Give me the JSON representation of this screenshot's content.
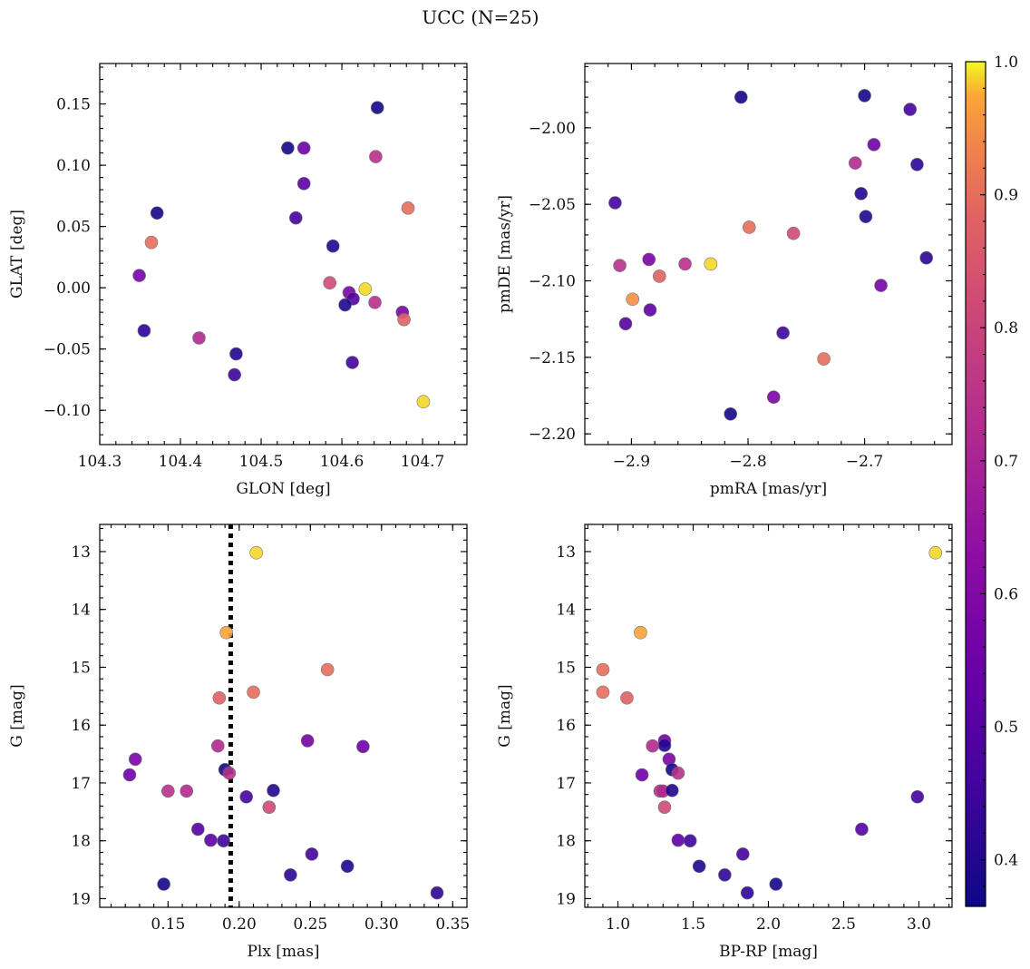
{
  "title": "UCC (N=25)",
  "colorbar": {
    "colormap": "plasma",
    "range": [
      0.365,
      1.0
    ],
    "ticks": [
      "0.4",
      "0.5",
      "0.6",
      "0.7",
      "0.8",
      "0.9",
      "1.0"
    ]
  },
  "chart_data": [
    {
      "type": "scatter",
      "xlabel": "GLON [deg]",
      "ylabel": "GLAT [deg]",
      "xlim": [
        104.3,
        104.755
      ],
      "ylim": [
        -0.128,
        0.183
      ],
      "xticks": [
        "104.3",
        "104.4",
        "104.5",
        "104.6",
        "104.7"
      ],
      "yticks": [
        "-0.10",
        "-0.05",
        "0.00",
        "0.05",
        "0.10",
        "0.15"
      ],
      "points": [
        {
          "x": 104.644,
          "y": 0.147,
          "c": 0.38
        },
        {
          "x": 104.533,
          "y": 0.114,
          "c": 0.38
        },
        {
          "x": 104.553,
          "y": 0.114,
          "c": 0.55
        },
        {
          "x": 104.642,
          "y": 0.107,
          "c": 0.74
        },
        {
          "x": 104.553,
          "y": 0.085,
          "c": 0.52
        },
        {
          "x": 104.682,
          "y": 0.065,
          "c": 0.9
        },
        {
          "x": 104.371,
          "y": 0.061,
          "c": 0.38
        },
        {
          "x": 104.543,
          "y": 0.057,
          "c": 0.46
        },
        {
          "x": 104.364,
          "y": 0.037,
          "c": 0.9
        },
        {
          "x": 104.589,
          "y": 0.034,
          "c": 0.4
        },
        {
          "x": 104.349,
          "y": 0.01,
          "c": 0.57
        },
        {
          "x": 104.585,
          "y": 0.004,
          "c": 0.82
        },
        {
          "x": 104.629,
          "y": -0.001,
          "c": 0.99
        },
        {
          "x": 104.609,
          "y": -0.004,
          "c": 0.58
        },
        {
          "x": 104.614,
          "y": -0.009,
          "c": 0.5
        },
        {
          "x": 104.641,
          "y": -0.012,
          "c": 0.74
        },
        {
          "x": 104.604,
          "y": -0.014,
          "c": 0.4
        },
        {
          "x": 104.675,
          "y": -0.02,
          "c": 0.58
        },
        {
          "x": 104.677,
          "y": -0.026,
          "c": 0.88
        },
        {
          "x": 104.355,
          "y": -0.035,
          "c": 0.42
        },
        {
          "x": 104.423,
          "y": -0.041,
          "c": 0.72
        },
        {
          "x": 104.469,
          "y": -0.054,
          "c": 0.4
        },
        {
          "x": 104.613,
          "y": -0.061,
          "c": 0.46
        },
        {
          "x": 104.467,
          "y": -0.071,
          "c": 0.45
        },
        {
          "x": 104.701,
          "y": -0.093,
          "c": 0.99
        }
      ]
    },
    {
      "type": "scatter",
      "xlabel": "pmRA [mas/yr]",
      "ylabel": "pmDE [mas/yr]",
      "xlim": [
        -2.94,
        -2.625
      ],
      "ylim": [
        -2.207,
        -1.958
      ],
      "xticks": [
        "-2.9",
        "-2.8",
        "-2.7"
      ],
      "yticks": [
        "-2.20",
        "-2.15",
        "-2.10",
        "-2.05",
        "-2.00"
      ],
      "points": [
        {
          "x": -2.806,
          "y": -1.98,
          "c": 0.38
        },
        {
          "x": -2.7,
          "y": -1.979,
          "c": 0.38
        },
        {
          "x": -2.661,
          "y": -1.988,
          "c": 0.46
        },
        {
          "x": -2.692,
          "y": -2.011,
          "c": 0.55
        },
        {
          "x": -2.708,
          "y": -2.023,
          "c": 0.72
        },
        {
          "x": -2.655,
          "y": -2.024,
          "c": 0.42
        },
        {
          "x": -2.703,
          "y": -2.043,
          "c": 0.4
        },
        {
          "x": -2.914,
          "y": -2.049,
          "c": 0.46
        },
        {
          "x": -2.699,
          "y": -2.058,
          "c": 0.4
        },
        {
          "x": -2.799,
          "y": -2.065,
          "c": 0.9
        },
        {
          "x": -2.761,
          "y": -2.069,
          "c": 0.82
        },
        {
          "x": -2.647,
          "y": -2.085,
          "c": 0.42
        },
        {
          "x": -2.885,
          "y": -2.086,
          "c": 0.58
        },
        {
          "x": -2.854,
          "y": -2.089,
          "c": 0.74
        },
        {
          "x": -2.832,
          "y": -2.089,
          "c": 0.99
        },
        {
          "x": -2.91,
          "y": -2.09,
          "c": 0.74
        },
        {
          "x": -2.876,
          "y": -2.097,
          "c": 0.88
        },
        {
          "x": -2.686,
          "y": -2.103,
          "c": 0.57
        },
        {
          "x": -2.899,
          "y": -2.112,
          "c": 0.95
        },
        {
          "x": -2.884,
          "y": -2.119,
          "c": 0.52
        },
        {
          "x": -2.905,
          "y": -2.128,
          "c": 0.5
        },
        {
          "x": -2.77,
          "y": -2.134,
          "c": 0.45
        },
        {
          "x": -2.735,
          "y": -2.151,
          "c": 0.9
        },
        {
          "x": -2.778,
          "y": -2.176,
          "c": 0.58
        },
        {
          "x": -2.815,
          "y": -2.187,
          "c": 0.38
        }
      ]
    },
    {
      "type": "scatter",
      "xlabel": "Plx [mas]",
      "ylabel": "G [mag]",
      "xlim": [
        0.102,
        0.36
      ],
      "ylim": [
        19.15,
        12.53
      ],
      "y_inverted": true,
      "vline": 0.194,
      "xticks": [
        "0.15",
        "0.20",
        "0.25",
        "0.30",
        "0.35"
      ],
      "yticks": [
        "13",
        "14",
        "15",
        "16",
        "17",
        "18",
        "19"
      ],
      "points": [
        {
          "x": 0.212,
          "y": 13.02,
          "c": 0.99
        },
        {
          "x": 0.191,
          "y": 14.4,
          "c": 0.97
        },
        {
          "x": 0.262,
          "y": 15.04,
          "c": 0.9
        },
        {
          "x": 0.21,
          "y": 15.43,
          "c": 0.9
        },
        {
          "x": 0.186,
          "y": 15.53,
          "c": 0.88
        },
        {
          "x": 0.248,
          "y": 16.27,
          "c": 0.57
        },
        {
          "x": 0.185,
          "y": 16.36,
          "c": 0.72
        },
        {
          "x": 0.287,
          "y": 16.37,
          "c": 0.55
        },
        {
          "x": 0.127,
          "y": 16.59,
          "c": 0.58
        },
        {
          "x": 0.19,
          "y": 16.77,
          "c": 0.38
        },
        {
          "x": 0.193,
          "y": 16.83,
          "c": 0.74
        },
        {
          "x": 0.123,
          "y": 16.86,
          "c": 0.55
        },
        {
          "x": 0.15,
          "y": 17.14,
          "c": 0.74
        },
        {
          "x": 0.163,
          "y": 17.14,
          "c": 0.72
        },
        {
          "x": 0.224,
          "y": 17.13,
          "c": 0.4
        },
        {
          "x": 0.205,
          "y": 17.24,
          "c": 0.46
        },
        {
          "x": 0.221,
          "y": 17.42,
          "c": 0.82
        },
        {
          "x": 0.171,
          "y": 17.8,
          "c": 0.5
        },
        {
          "x": 0.18,
          "y": 17.99,
          "c": 0.52
        },
        {
          "x": 0.189,
          "y": 18.0,
          "c": 0.45
        },
        {
          "x": 0.251,
          "y": 18.23,
          "c": 0.46
        },
        {
          "x": 0.276,
          "y": 18.44,
          "c": 0.4
        },
        {
          "x": 0.236,
          "y": 18.59,
          "c": 0.42
        },
        {
          "x": 0.147,
          "y": 18.75,
          "c": 0.38
        },
        {
          "x": 0.339,
          "y": 18.9,
          "c": 0.42
        }
      ]
    },
    {
      "type": "scatter",
      "xlabel": "BP-RP [mag]",
      "ylabel": "G [mag]",
      "xlim": [
        0.78,
        3.22
      ],
      "ylim": [
        19.15,
        12.53
      ],
      "y_inverted": true,
      "xticks": [
        "1.0",
        "1.5",
        "2.0",
        "2.5",
        "3.0"
      ],
      "yticks": [
        "13",
        "14",
        "15",
        "16",
        "17",
        "18",
        "19"
      ],
      "points": [
        {
          "x": 3.11,
          "y": 13.02,
          "c": 0.99
        },
        {
          "x": 1.15,
          "y": 14.4,
          "c": 0.97
        },
        {
          "x": 0.9,
          "y": 15.04,
          "c": 0.9
        },
        {
          "x": 0.9,
          "y": 15.43,
          "c": 0.9
        },
        {
          "x": 1.06,
          "y": 15.53,
          "c": 0.88
        },
        {
          "x": 1.31,
          "y": 16.27,
          "c": 0.57
        },
        {
          "x": 1.31,
          "y": 16.35,
          "c": 0.4
        },
        {
          "x": 1.23,
          "y": 16.36,
          "c": 0.72
        },
        {
          "x": 1.34,
          "y": 16.59,
          "c": 0.58
        },
        {
          "x": 1.36,
          "y": 16.77,
          "c": 0.38
        },
        {
          "x": 1.4,
          "y": 16.83,
          "c": 0.74
        },
        {
          "x": 1.16,
          "y": 16.86,
          "c": 0.55
        },
        {
          "x": 1.28,
          "y": 17.14,
          "c": 0.74
        },
        {
          "x": 1.3,
          "y": 17.14,
          "c": 0.72
        },
        {
          "x": 1.36,
          "y": 17.13,
          "c": 0.4
        },
        {
          "x": 2.99,
          "y": 17.24,
          "c": 0.46
        },
        {
          "x": 1.31,
          "y": 17.42,
          "c": 0.82
        },
        {
          "x": 2.62,
          "y": 17.8,
          "c": 0.5
        },
        {
          "x": 1.4,
          "y": 17.99,
          "c": 0.52
        },
        {
          "x": 1.48,
          "y": 18.0,
          "c": 0.45
        },
        {
          "x": 1.83,
          "y": 18.23,
          "c": 0.46
        },
        {
          "x": 1.54,
          "y": 18.44,
          "c": 0.4
        },
        {
          "x": 1.71,
          "y": 18.59,
          "c": 0.42
        },
        {
          "x": 2.05,
          "y": 18.75,
          "c": 0.38
        },
        {
          "x": 1.86,
          "y": 18.9,
          "c": 0.42
        }
      ]
    }
  ]
}
